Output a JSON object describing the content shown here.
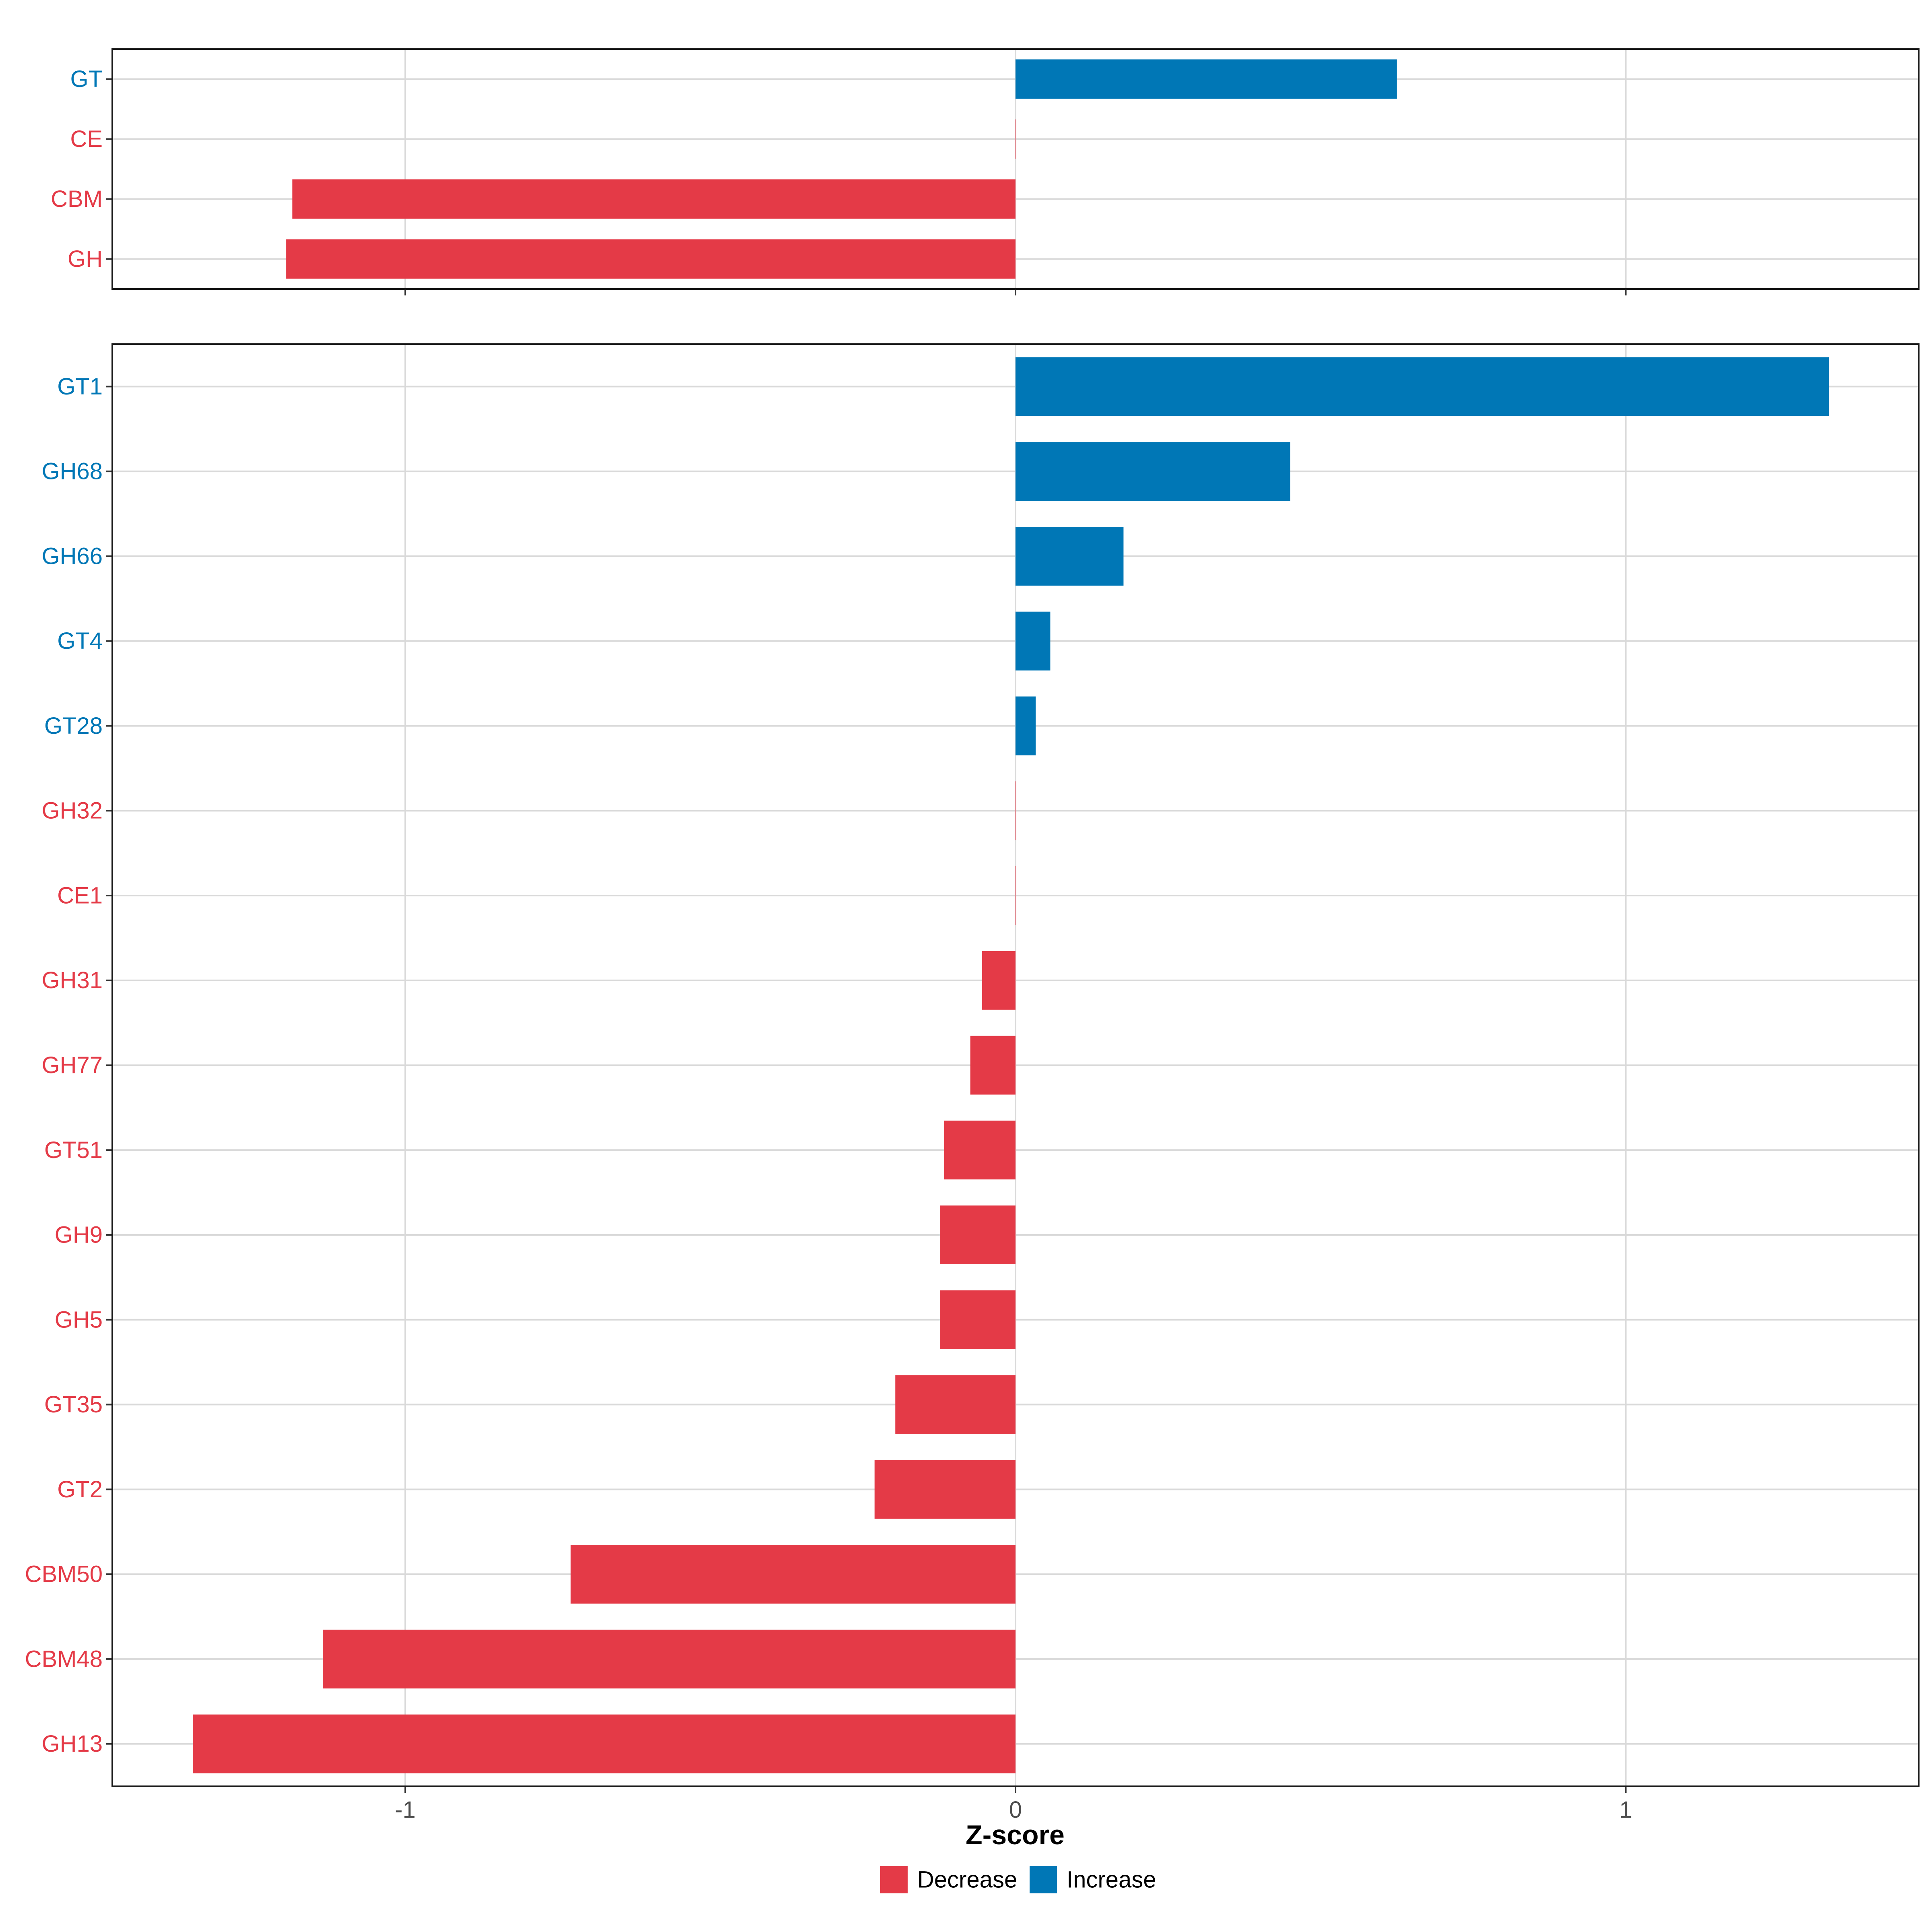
{
  "colors": {
    "decrease": "#E43A47",
    "increase": "#0077B6",
    "grid": "#D9D9D9",
    "panel_border": "#1a1a1a",
    "text": "#1a1a1a"
  },
  "chart_data": [
    {
      "type": "bar",
      "orientation": "horizontal",
      "categories": [
        "GT",
        "CE",
        "CBM",
        "GH"
      ],
      "values": [
        0.625,
        0.0,
        -1.185,
        -1.195
      ],
      "xlim": [
        -1.48,
        1.48
      ],
      "xticks": [
        -1,
        0,
        1
      ],
      "grid": true
    },
    {
      "type": "bar",
      "orientation": "horizontal",
      "categories": [
        "GT1",
        "GH68",
        "GH66",
        "GT4",
        "GT28",
        "GH32",
        "CE1",
        "GH31",
        "GH77",
        "GT51",
        "GH9",
        "GH5",
        "GT35",
        "GT2",
        "CBM50",
        "CBM48",
        "GH13"
      ],
      "values": [
        1.333,
        0.45,
        0.177,
        0.057,
        0.033,
        0.0,
        0.0,
        -0.055,
        -0.074,
        -0.117,
        -0.124,
        -0.124,
        -0.197,
        -0.231,
        -0.729,
        -1.135,
        -1.348
      ],
      "xlim": [
        -1.48,
        1.48
      ],
      "xticks": [
        -1,
        0,
        1
      ],
      "xticklabels": [
        "-1",
        "0",
        "1"
      ],
      "xlabel": "Z-score",
      "grid": true
    }
  ],
  "legend": {
    "placement": "bottom",
    "items": [
      {
        "key": "decrease",
        "label": "Decrease"
      },
      {
        "key": "increase",
        "label": "Increase"
      }
    ]
  }
}
